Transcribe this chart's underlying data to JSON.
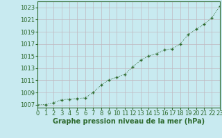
{
  "x": [
    0,
    1,
    2,
    3,
    4,
    5,
    6,
    7,
    8,
    9,
    10,
    11,
    12,
    13,
    14,
    15,
    16,
    17,
    18,
    19,
    20,
    21,
    22,
    23
  ],
  "y": [
    1007.0,
    1007.0,
    1007.3,
    1007.8,
    1007.9,
    1008.0,
    1008.1,
    1009.0,
    1010.2,
    1011.1,
    1011.5,
    1012.0,
    1013.2,
    1014.3,
    1015.0,
    1015.4,
    1016.0,
    1016.2,
    1017.0,
    1018.5,
    1019.4,
    1020.2,
    1021.3,
    1023.2
  ],
  "line_color": "#2d6a2d",
  "marker": "+",
  "marker_size": 3,
  "bg_color": "#c8eaf0",
  "grid_color": "#c0b8c0",
  "ylabel_ticks": [
    1007,
    1009,
    1011,
    1013,
    1015,
    1017,
    1019,
    1021,
    1023
  ],
  "xlim": [
    0,
    23
  ],
  "ylim": [
    1006.5,
    1024.0
  ],
  "xlabel": "Graphe pression niveau de la mer (hPa)",
  "xlabel_fontsize": 7,
  "tick_fontsize": 6,
  "axis_color": "#2d6a2d",
  "spine_color": "#2d6a2d"
}
